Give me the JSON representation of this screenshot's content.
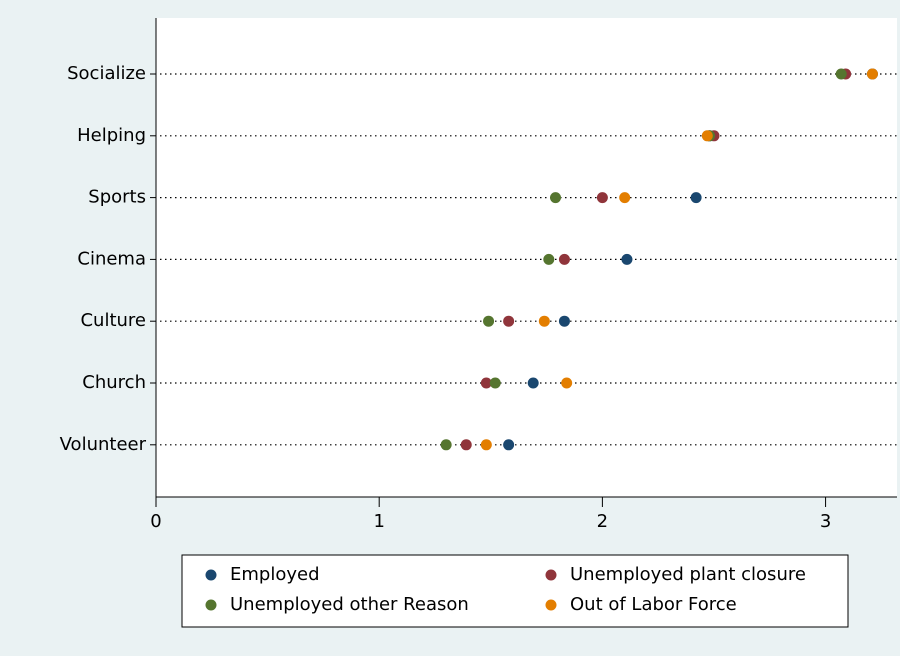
{
  "chart_data": {
    "type": "dot",
    "categories": [
      "Socialize",
      "Helping",
      "Sports",
      "Cinema",
      "Culture",
      "Church",
      "Volunteer"
    ],
    "series": [
      {
        "name": "Employed",
        "color": "#1a476f",
        "values": [
          3.21,
          2.48,
          2.42,
          2.11,
          1.83,
          1.69,
          1.58
        ]
      },
      {
        "name": "Unemployed plant closure",
        "color": "#90353b",
        "values": [
          3.09,
          2.5,
          2.0,
          1.83,
          1.58,
          1.48,
          1.39
        ]
      },
      {
        "name": "Unemployed other Reason",
        "color": "#55752f",
        "values": [
          3.07,
          2.48,
          1.79,
          1.76,
          1.49,
          1.52,
          1.3
        ]
      },
      {
        "name": "Out of Labor Force",
        "color": "#e37e00",
        "values": [
          3.21,
          2.47,
          2.1,
          null,
          1.74,
          1.84,
          1.48
        ]
      }
    ],
    "xlim": [
      0,
      3.32
    ],
    "xticks": [
      0,
      1,
      2,
      3
    ]
  }
}
